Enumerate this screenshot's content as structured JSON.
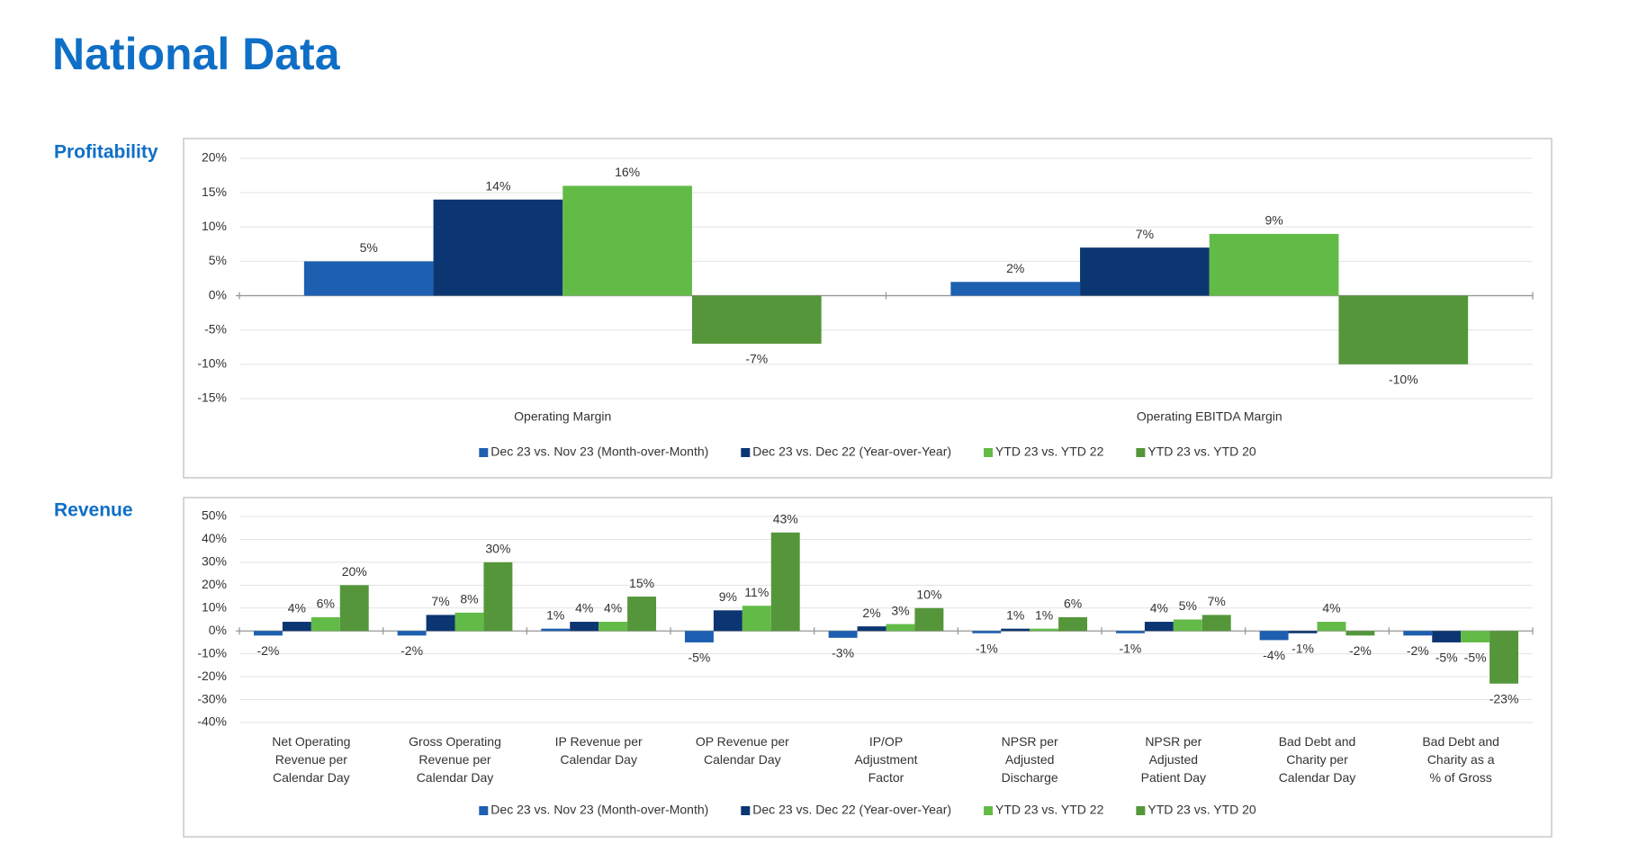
{
  "title": "National Data",
  "chart_data": [
    {
      "type": "bar",
      "title": "Profitability",
      "categories": [
        "Operating Margin",
        "Operating EBITDA Margin"
      ],
      "series": [
        {
          "name": "Dec 23 vs. Nov 23 (Month-over-Month)",
          "color": "#1d5fb0",
          "values": [
            5,
            2
          ],
          "value_labels": [
            "5%",
            "2%"
          ]
        },
        {
          "name": "Dec 23 vs. Dec 22 (Year-over-Year)",
          "color": "#0b3672",
          "values": [
            14,
            7
          ],
          "value_labels": [
            "14%",
            "7%"
          ]
        },
        {
          "name": "YTD 23 vs. YTD 22",
          "color": "#63bb47",
          "values": [
            16,
            9
          ],
          "value_labels": [
            "16%",
            "9%"
          ]
        },
        {
          "name": "YTD 23 vs. YTD 20",
          "color": "#55963a",
          "values": [
            -7,
            -10
          ],
          "value_labels": [
            "-7%",
            "-10%"
          ]
        }
      ],
      "ylim": [
        -15,
        20
      ],
      "yticks": [
        {
          "value": -15,
          "label": "-15%"
        },
        {
          "value": -10,
          "label": "-10%"
        },
        {
          "value": -5,
          "label": "-5%"
        },
        {
          "value": 0,
          "label": "0%"
        },
        {
          "value": 5,
          "label": "5%"
        },
        {
          "value": 10,
          "label": "10%"
        },
        {
          "value": 15,
          "label": "15%"
        },
        {
          "value": 20,
          "label": "20%"
        }
      ],
      "grid": true,
      "legend": "bottom"
    },
    {
      "type": "bar",
      "title": "Revenue",
      "categories": [
        "Net Operating\nRevenue per\nCalendar Day",
        "Gross Operating\nRevenue per\nCalendar Day",
        "IP Revenue per\nCalendar Day",
        "OP Revenue per\nCalendar Day",
        "IP/OP\nAdjustment\nFactor",
        "NPSR per\nAdjusted\nDischarge",
        "NPSR per\nAdjusted\nPatient Day",
        "Bad Debt and\nCharity per\nCalendar Day",
        "Bad Debt and\nCharity as a\n% of Gross"
      ],
      "series": [
        {
          "name": "Dec 23 vs. Nov 23 (Month-over-Month)",
          "color": "#1d5fb0",
          "values": [
            -2,
            -2,
            1,
            -5,
            -3,
            -1,
            -1,
            -4,
            -2
          ],
          "value_labels": [
            "-2%",
            "-2%",
            "1%",
            "-5%",
            "-3%",
            "-1%",
            "-1%",
            "-4%",
            "-2%"
          ]
        },
        {
          "name": "Dec 23 vs. Dec 22 (Year-over-Year)",
          "color": "#0b3672",
          "values": [
            4,
            7,
            4,
            9,
            2,
            1,
            4,
            -1,
            -5
          ],
          "value_labels": [
            "4%",
            "7%",
            "4%",
            "9%",
            "2%",
            "1%",
            "4%",
            "-1%",
            "-5%"
          ]
        },
        {
          "name": "YTD 23 vs. YTD 22",
          "color": "#63bb47",
          "values": [
            6,
            8,
            4,
            11,
            3,
            1,
            5,
            4,
            -5
          ],
          "value_labels": [
            "6%",
            "8%",
            "4%",
            "11%",
            "3%",
            "1%",
            "5%",
            "4%",
            "-5%"
          ]
        },
        {
          "name": "YTD 23 vs. YTD 20",
          "color": "#55963a",
          "values": [
            20,
            30,
            15,
            43,
            10,
            6,
            7,
            -2,
            -23
          ],
          "value_labels": [
            "20%",
            "30%",
            "15%",
            "43%",
            "10%",
            "6%",
            "7%",
            "-2%",
            "-23%"
          ]
        }
      ],
      "ylim": [
        -40,
        50
      ],
      "yticks": [
        {
          "value": -40,
          "label": "-40%"
        },
        {
          "value": -30,
          "label": "-30%"
        },
        {
          "value": -20,
          "label": "-20%"
        },
        {
          "value": -10,
          "label": "-10%"
        },
        {
          "value": 0,
          "label": "0%"
        },
        {
          "value": 10,
          "label": "10%"
        },
        {
          "value": 20,
          "label": "20%"
        },
        {
          "value": 30,
          "label": "30%"
        },
        {
          "value": 40,
          "label": "40%"
        },
        {
          "value": 50,
          "label": "50%"
        }
      ],
      "grid": true,
      "legend": "bottom"
    }
  ]
}
